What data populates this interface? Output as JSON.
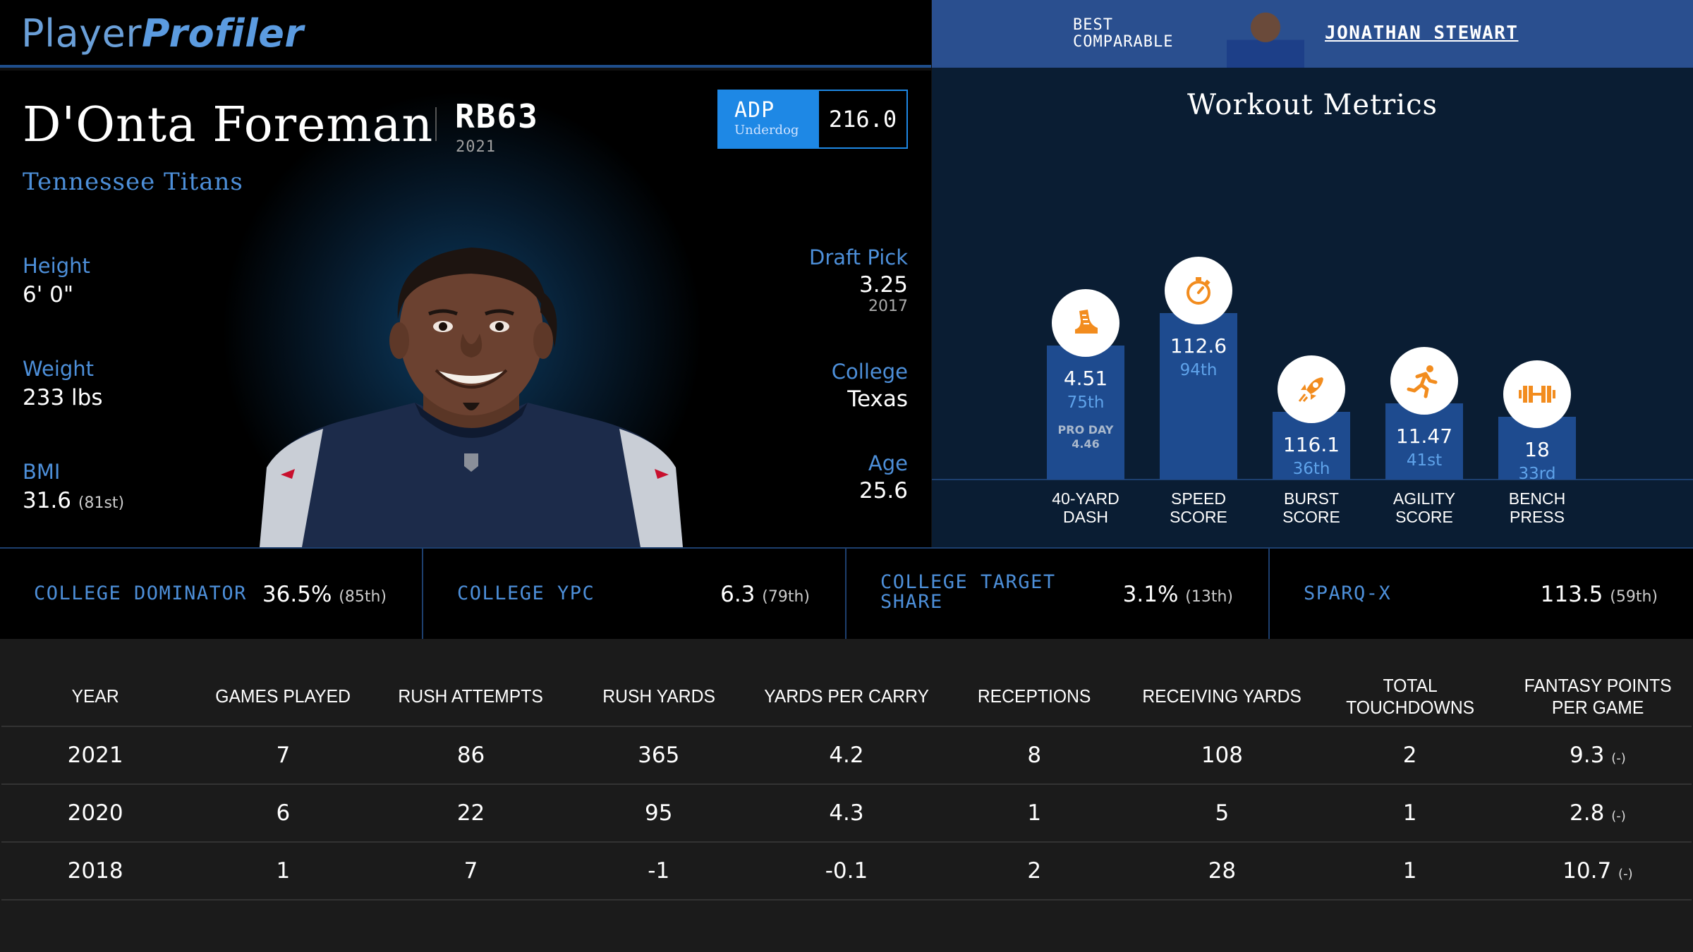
{
  "header": {
    "logo_part1": "Player",
    "logo_part2": "Profiler",
    "best_comparable_line1": "BEST",
    "best_comparable_line2": "COMPARABLE",
    "comparable_name": "JONATHAN STEWART"
  },
  "player": {
    "name": "D'Onta Foreman",
    "position_rank": "RB63",
    "year": "2021",
    "team": "Tennessee Titans",
    "adp": {
      "label": "ADP",
      "source": "Underdog",
      "value": "216.0"
    },
    "height": {
      "label": "Height",
      "value": "6' 0\""
    },
    "weight": {
      "label": "Weight",
      "value": "233 lbs"
    },
    "bmi": {
      "label": "BMI",
      "value": "31.6",
      "rank": "(81st)"
    },
    "draft_pick": {
      "label": "Draft Pick",
      "value": "3.25",
      "year": "2017"
    },
    "college": {
      "label": "College",
      "value": "Texas"
    },
    "age": {
      "label": "Age",
      "value": "25.6"
    }
  },
  "workout": {
    "title": "Workout Metrics",
    "metrics": [
      {
        "icon": "shoe-icon",
        "value": "4.51",
        "percentile": "75th",
        "note_line1": "PRO DAY",
        "note_line2": "4.46",
        "label_line1": "40-YARD",
        "label_line2": "DASH",
        "percentile_value": 75
      },
      {
        "icon": "stopwatch-icon",
        "value": "112.6",
        "percentile": "94th",
        "label_line1": "SPEED",
        "label_line2": "SCORE",
        "percentile_value": 94
      },
      {
        "icon": "rocket-icon",
        "value": "116.1",
        "percentile": "36th",
        "label_line1": "BURST",
        "label_line2": "SCORE",
        "percentile_value": 36
      },
      {
        "icon": "runner-icon",
        "value": "11.47",
        "percentile": "41st",
        "label_line1": "AGILITY",
        "label_line2": "SCORE",
        "percentile_value": 41
      },
      {
        "icon": "barbell-icon",
        "value": "18",
        "percentile": "33rd",
        "label_line1": "BENCH",
        "label_line2": "PRESS",
        "percentile_value": 33
      }
    ]
  },
  "college_stats": [
    {
      "label_line1": "COLLEGE DOMINATOR",
      "label_line2": "",
      "value": "36.5%",
      "rank": "(85th)"
    },
    {
      "label_line1": "COLLEGE YPC",
      "label_line2": "",
      "value": "6.3",
      "rank": "(79th)"
    },
    {
      "label_line1": "COLLEGE TARGET",
      "label_line2": "SHARE",
      "value": "3.1%",
      "rank": "(13th)"
    },
    {
      "label_line1": "SPARQ-X",
      "label_line2": "",
      "value": "113.5",
      "rank": "(59th)"
    }
  ],
  "table": {
    "headers": [
      "YEAR",
      "GAMES PLAYED",
      "RUSH ATTEMPTS",
      "RUSH YARDS",
      "YARDS PER CARRY",
      "RECEPTIONS",
      "RECEIVING YARDS",
      "TOTAL TOUCHDOWNS",
      "FANTASY POINTS PER GAME"
    ],
    "rows": [
      {
        "year": "2021",
        "games": "7",
        "rush_att": "86",
        "rush_yds": "365",
        "ypc": "4.2",
        "rec": "8",
        "rec_yds": "108",
        "td": "2",
        "fppg": "9.3",
        "fppg_rank": "(-)"
      },
      {
        "year": "2020",
        "games": "6",
        "rush_att": "22",
        "rush_yds": "95",
        "ypc": "4.3",
        "rec": "1",
        "rec_yds": "5",
        "td": "1",
        "fppg": "2.8",
        "fppg_rank": "(-)"
      },
      {
        "year": "2018",
        "games": "1",
        "rush_att": "7",
        "rush_yds": "-1",
        "ypc": "-0.1",
        "rec": "2",
        "rec_yds": "28",
        "td": "1",
        "fppg": "10.7",
        "fppg_rank": "(-)"
      }
    ]
  },
  "colors": {
    "accent_blue": "#4d8fd9",
    "adp_blue": "#1e88e5",
    "bar_blue": "#1e4b8f",
    "icon_orange": "#f28c1e"
  }
}
